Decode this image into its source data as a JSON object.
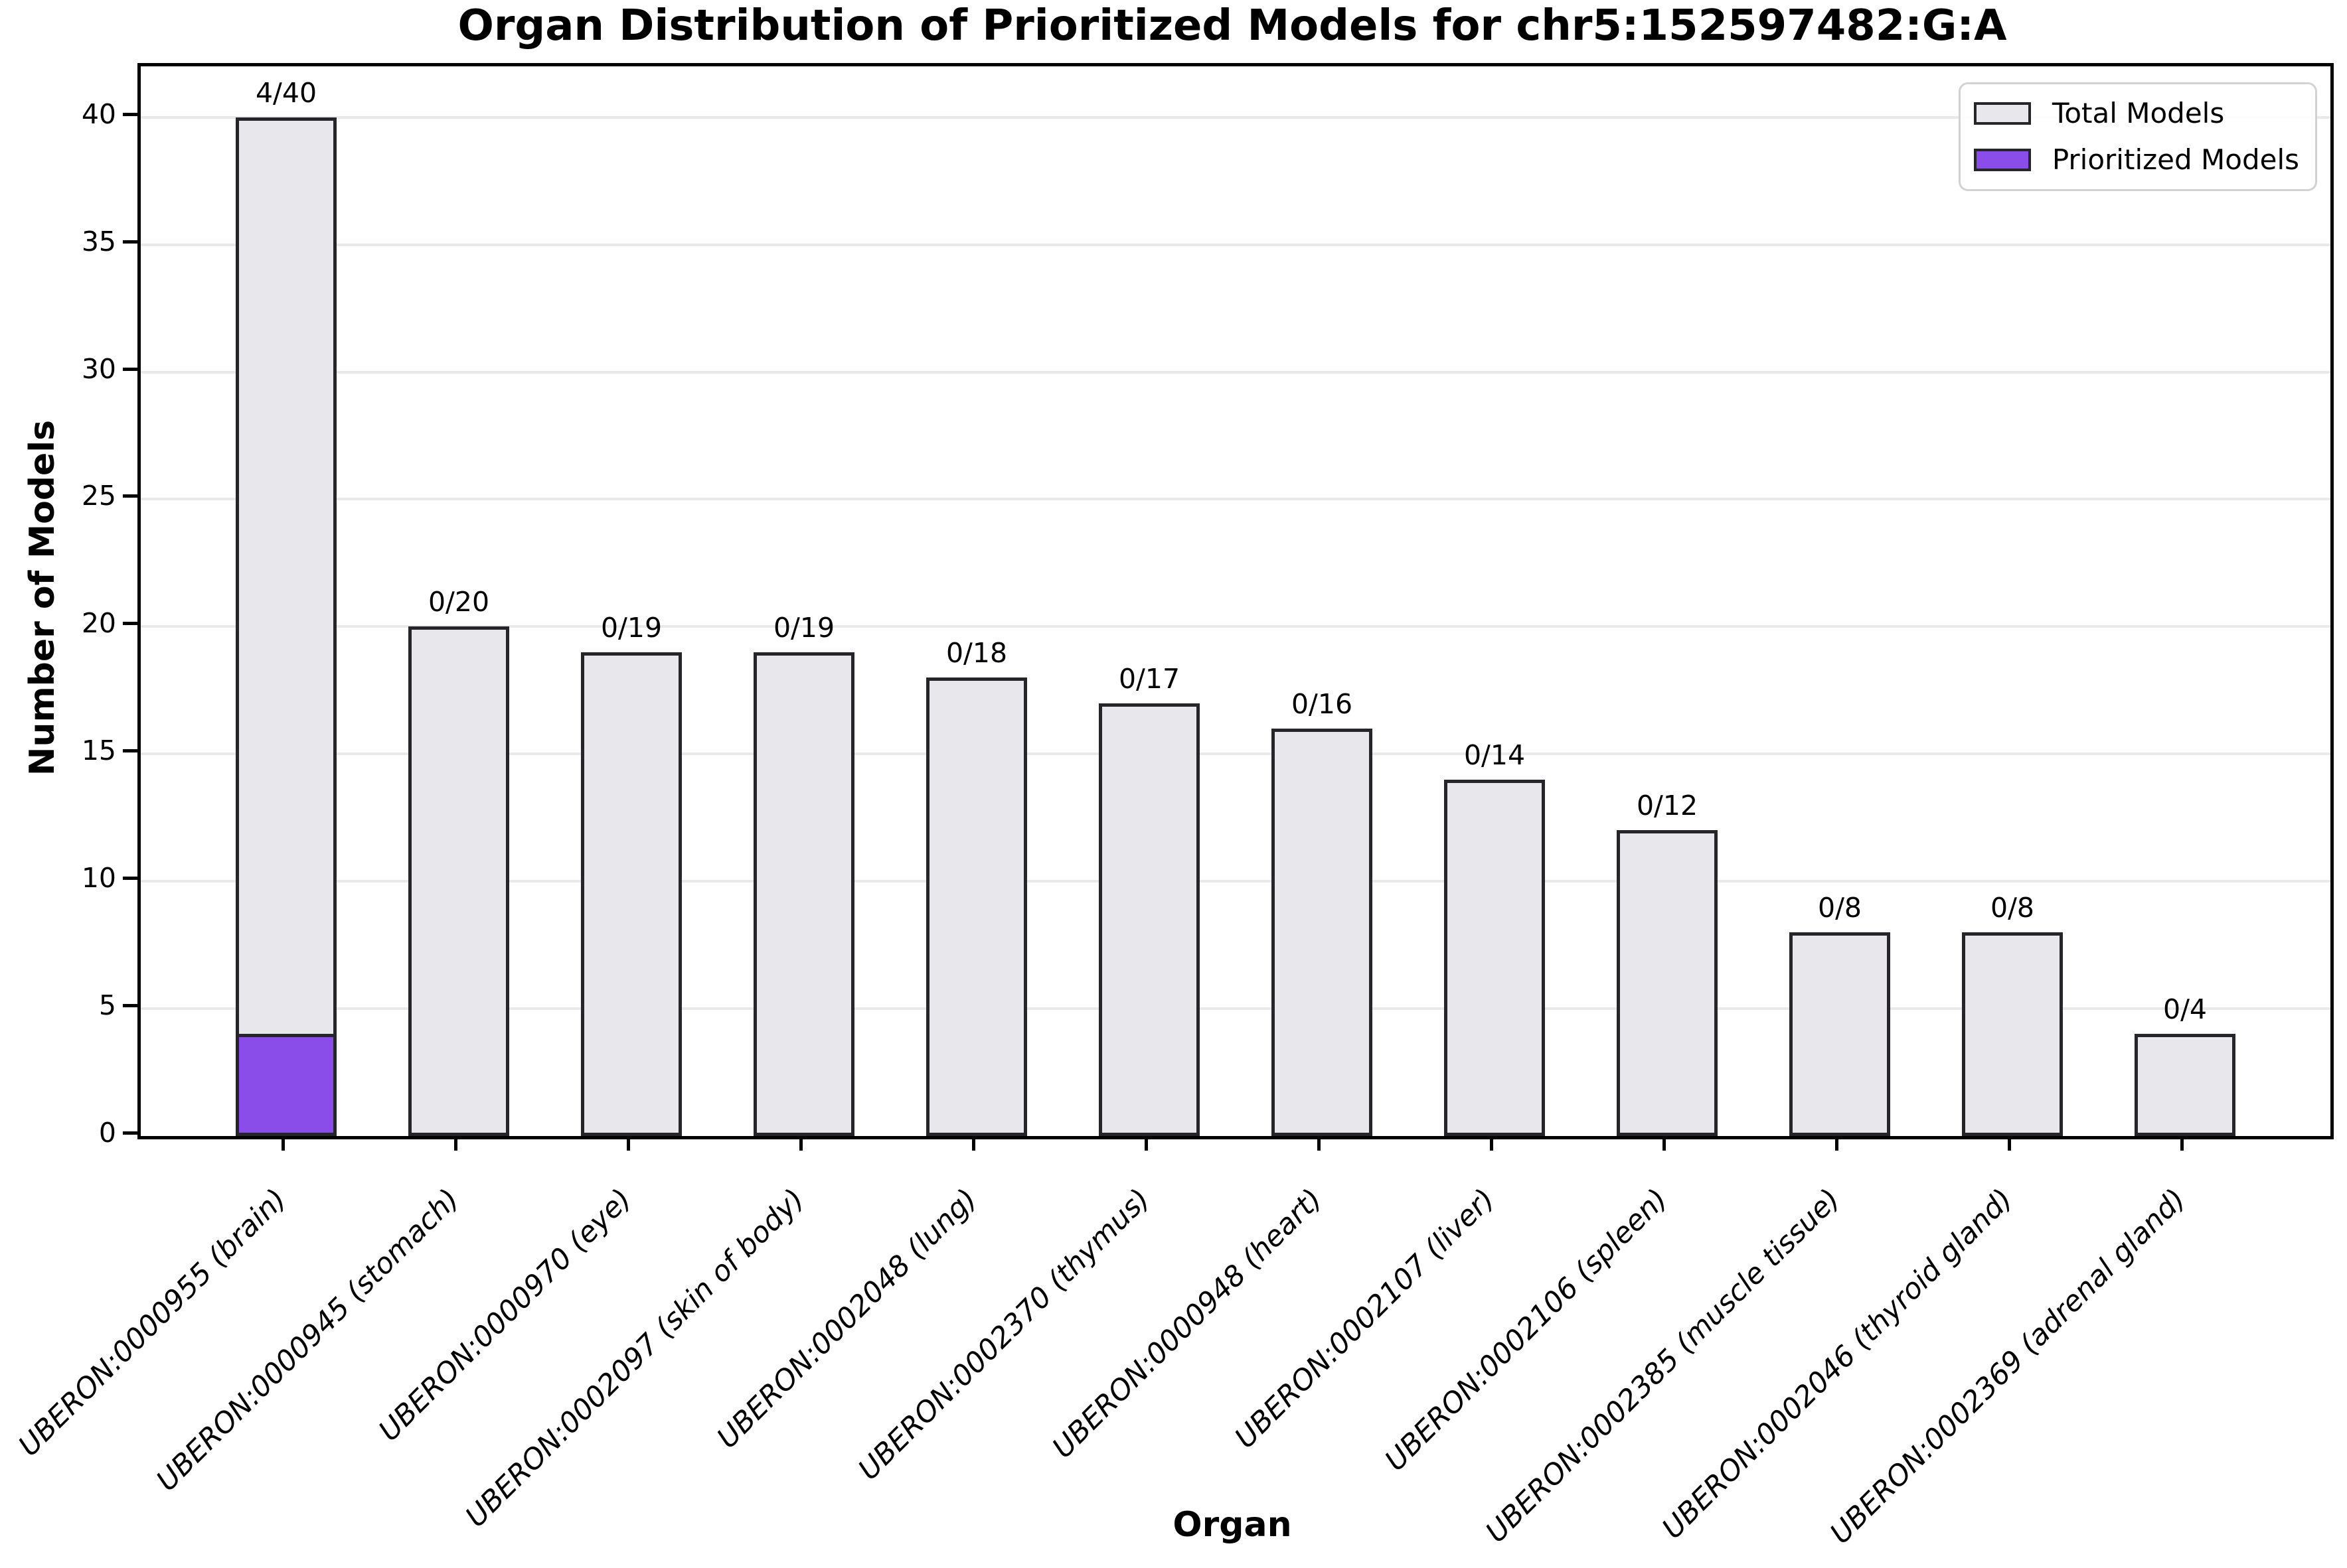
{
  "figure": {
    "title": "Organ Distribution of Prioritized Models for chr5:152597482:G:A",
    "xlabel": "Organ",
    "ylabel": "Number of Models"
  },
  "legend": {
    "total_label": "Total Models",
    "prioritized_label": "Prioritized Models",
    "position": "upper right"
  },
  "colors": {
    "total_fill": "#e8e8ec",
    "prioritized_fill": "#8a4de9",
    "bar_edge": "#26262a",
    "grid": "#e9e9e9",
    "spine": "#000000",
    "text": "#000000",
    "background": "#ffffff"
  },
  "chart_data": {
    "type": "bar",
    "stacked_overlay": true,
    "title": "Organ Distribution of Prioritized Models for chr5:152597482:G:A",
    "xlabel": "Organ",
    "ylabel": "Number of Models",
    "ylim": [
      0,
      42
    ],
    "yticks": [
      0,
      5,
      10,
      15,
      20,
      25,
      30,
      35,
      40
    ],
    "grid": "horizontal",
    "legend_position": "upper right",
    "categories": [
      "UBERON:0000955 (brain)",
      "UBERON:0000945 (stomach)",
      "UBERON:0000970 (eye)",
      "UBERON:0002097 (skin of body)",
      "UBERON:0002048 (lung)",
      "UBERON:0002370 (thymus)",
      "UBERON:0000948 (heart)",
      "UBERON:0002107 (liver)",
      "UBERON:0002106 (spleen)",
      "UBERON:0002385 (muscle tissue)",
      "UBERON:0002046 (thyroid gland)",
      "UBERON:0002369 (adrenal gland)"
    ],
    "series": [
      {
        "name": "Total Models",
        "values": [
          40,
          20,
          19,
          19,
          18,
          17,
          16,
          14,
          12,
          8,
          8,
          4
        ]
      },
      {
        "name": "Prioritized Models",
        "values": [
          4,
          0,
          0,
          0,
          0,
          0,
          0,
          0,
          0,
          0,
          0,
          0
        ]
      }
    ],
    "bar_labels": [
      "4/40",
      "0/20",
      "0/19",
      "0/19",
      "0/18",
      "0/17",
      "0/16",
      "0/14",
      "0/12",
      "0/8",
      "0/8",
      "0/4"
    ]
  }
}
